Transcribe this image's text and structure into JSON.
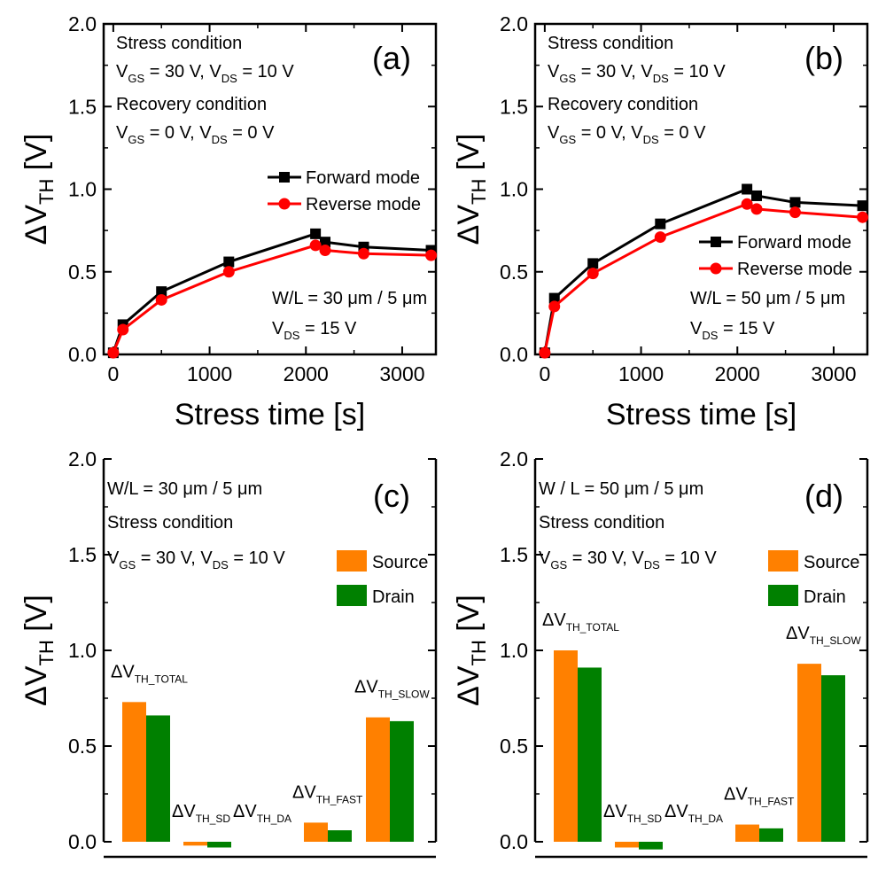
{
  "chart_data": [
    {
      "panel": "(a)",
      "type": "line",
      "ylabel_main": "ΔV",
      "ylabel_sub": "TH",
      "ylabel_unit": "[V]",
      "xlabel": "Stress time [s]",
      "ylim": [
        0,
        2.0
      ],
      "xlim": [
        -100,
        3350
      ],
      "xticks": [
        "0",
        "1000",
        "2000",
        "3000"
      ],
      "yticks": [
        "0.0",
        "0.5",
        "1.0",
        "1.5",
        "2.0"
      ],
      "series": [
        {
          "name": "Forward mode",
          "color": "#000000",
          "marker": "square",
          "x": [
            0,
            100,
            500,
            1200,
            2100,
            2200,
            2600,
            3300
          ],
          "y": [
            0.01,
            0.18,
            0.38,
            0.56,
            0.73,
            0.68,
            0.65,
            0.63
          ]
        },
        {
          "name": "Reverse mode",
          "color": "#ff0000",
          "marker": "circle",
          "x": [
            0,
            100,
            500,
            1200,
            2100,
            2200,
            2600,
            3300
          ],
          "y": [
            0.01,
            0.15,
            0.33,
            0.5,
            0.66,
            0.63,
            0.61,
            0.6
          ]
        }
      ],
      "legend_position": "upper-right",
      "annotations": {
        "stress_title": "Stress condition",
        "stress_vgs": "GS",
        "stress_line_a": "= 30 V, V",
        "stress_vds": "DS",
        "stress_line_b": "= 10 V",
        "recovery_title": "Recovery condition",
        "recovery_line_a": "= 0 V, V",
        "recovery_line_b": "= 0 V",
        "geom": "W/L = 30 μm / 5 μm",
        "vds_line": "= 15 V",
        "v": "V"
      }
    },
    {
      "panel": "(b)",
      "type": "line",
      "ylabel_main": "ΔV",
      "ylabel_sub": "TH",
      "ylabel_unit": "[V]",
      "xlabel": "Stress time [s]",
      "ylim": [
        0,
        2.0
      ],
      "xlim": [
        -100,
        3350
      ],
      "xticks": [
        "0",
        "1000",
        "2000",
        "3000"
      ],
      "yticks": [
        "0.0",
        "0.5",
        "1.0",
        "1.5",
        "2.0"
      ],
      "series": [
        {
          "name": "Forward mode",
          "color": "#000000",
          "marker": "square",
          "x": [
            0,
            100,
            500,
            1200,
            2100,
            2200,
            2600,
            3300
          ],
          "y": [
            0.01,
            0.34,
            0.55,
            0.79,
            1.0,
            0.96,
            0.92,
            0.9
          ]
        },
        {
          "name": "Reverse mode",
          "color": "#ff0000",
          "marker": "circle",
          "x": [
            0,
            100,
            500,
            1200,
            2100,
            2200,
            2600,
            3300
          ],
          "y": [
            0.01,
            0.29,
            0.49,
            0.71,
            0.91,
            0.88,
            0.86,
            0.83
          ]
        }
      ],
      "legend_position": "middle-right",
      "annotations": {
        "stress_title": "Stress condition",
        "stress_vgs": "GS",
        "stress_line_a": "= 30 V, V",
        "stress_vds": "DS",
        "stress_line_b": "= 10 V",
        "recovery_title": "Recovery condition",
        "recovery_line_a": "= 0 V, V",
        "recovery_line_b": "= 0 V",
        "geom": "W/L = 50 μm / 5 μm",
        "vds_line": "= 15 V",
        "v": "V"
      }
    },
    {
      "panel": "(c)",
      "type": "bar",
      "ylabel_main": "ΔV",
      "ylabel_sub": "TH",
      "ylabel_unit": "[V]",
      "ylim": [
        0,
        2.0
      ],
      "yticks": [
        "0.0",
        "0.5",
        "1.0",
        "1.5",
        "2.0"
      ],
      "categories": [
        {
          "main": "ΔV",
          "sub": "TH_TOTAL"
        },
        {
          "main": "ΔV",
          "sub": "TH_SD"
        },
        {
          "main": "ΔV",
          "sub": "TH_DA"
        },
        {
          "main": "ΔV",
          "sub": "TH_FAST"
        },
        {
          "main": "ΔV",
          "sub": "TH_SLOW"
        }
      ],
      "series": [
        {
          "name": "Source",
          "color": "#ff8000",
          "values": [
            0.73,
            -0.02,
            0.0,
            0.1,
            0.65
          ]
        },
        {
          "name": "Drain",
          "color": "#008000",
          "values": [
            0.66,
            -0.03,
            0.0,
            0.06,
            0.63
          ]
        }
      ],
      "legend_position": "upper-right",
      "annotations": {
        "geom": "W/L = 30 μm / 5 μm",
        "stress_title": "Stress condition",
        "v": "V",
        "stress_vgs": "GS",
        "stress_line_a": "= 30 V, V",
        "stress_vds": "DS",
        "stress_line_b": "= 10 V"
      }
    },
    {
      "panel": "(d)",
      "type": "bar",
      "ylabel_main": "ΔV",
      "ylabel_sub": "TH",
      "ylabel_unit": "[V]",
      "ylim": [
        0,
        2.0
      ],
      "yticks": [
        "0.0",
        "0.5",
        "1.0",
        "1.5",
        "2.0"
      ],
      "categories": [
        {
          "main": "ΔV",
          "sub": "TH_TOTAL"
        },
        {
          "main": "ΔV",
          "sub": "TH_SD"
        },
        {
          "main": "ΔV",
          "sub": "TH_DA"
        },
        {
          "main": "ΔV",
          "sub": "TH_FAST"
        },
        {
          "main": "ΔV",
          "sub": "TH_SLOW"
        }
      ],
      "series": [
        {
          "name": "Source",
          "color": "#ff8000",
          "values": [
            1.0,
            -0.03,
            0.0,
            0.09,
            0.93
          ]
        },
        {
          "name": "Drain",
          "color": "#008000",
          "values": [
            0.91,
            -0.04,
            0.0,
            0.07,
            0.87
          ]
        }
      ],
      "legend_position": "upper-right",
      "annotations": {
        "geom": "W / L = 50 μm / 5 μm",
        "stress_title": "Stress condition",
        "v": "V",
        "stress_vgs": "GS",
        "stress_line_a": "= 30 V, V",
        "stress_vds": "DS",
        "stress_line_b": "= 10 V"
      }
    }
  ]
}
